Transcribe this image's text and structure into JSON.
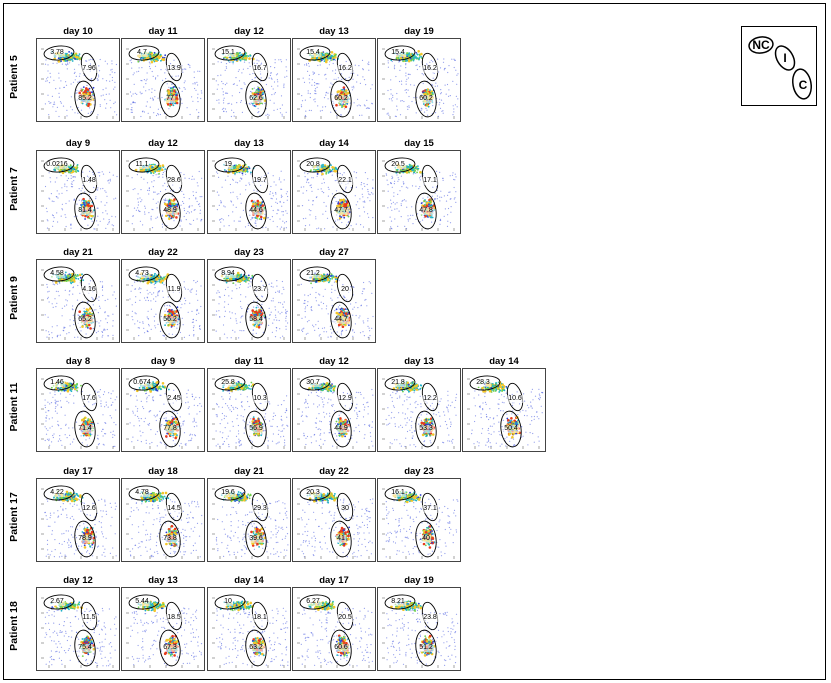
{
  "legend": {
    "labels": {
      "nc": "NC",
      "i": "I",
      "c": "C"
    }
  },
  "rows": [
    {
      "patient": "Patient 5",
      "panels": [
        {
          "day": "day 10",
          "nc": "3.78",
          "i": "7.96",
          "c": "85.2"
        },
        {
          "day": "day 11",
          "nc": "4.7",
          "i": "13.9",
          "c": "77"
        },
        {
          "day": "day 12",
          "nc": "15.1",
          "i": "16.7",
          "c": "62.6"
        },
        {
          "day": "day 13",
          "nc": "15.4",
          "i": "16.2",
          "c": "60.2"
        },
        {
          "day": "day 19",
          "nc": "15.4",
          "i": "16.2",
          "c": "60.2"
        }
      ]
    },
    {
      "patient": "Patient 7",
      "panels": [
        {
          "day": "day 9",
          "nc": "0.0216",
          "i": "1.48",
          "c": "81.4"
        },
        {
          "day": "day 12",
          "nc": "11.1",
          "i": "28.6",
          "c": "48.9"
        },
        {
          "day": "day 13",
          "nc": "19",
          "i": "19.7",
          "c": "44.6"
        },
        {
          "day": "day 14",
          "nc": "20.8",
          "i": "22.1",
          "c": "47.7"
        },
        {
          "day": "day 15",
          "nc": "20.5",
          "i": "17.1",
          "c": "47.8"
        }
      ]
    },
    {
      "patient": "Patient 9",
      "panels": [
        {
          "day": "day 21",
          "nc": "4.58",
          "i": "4.16",
          "c": "65.2"
        },
        {
          "day": "day 22",
          "nc": "4.73",
          "i": "11.9",
          "c": "56.2"
        },
        {
          "day": "day 23",
          "nc": "8.94",
          "i": "23.7",
          "c": "58.4"
        },
        {
          "day": "day 27",
          "nc": "21.2",
          "i": "20",
          "c": "44.7"
        }
      ]
    },
    {
      "patient": "Patient 11",
      "panels": [
        {
          "day": "day 8",
          "nc": "1.46",
          "i": "17.6",
          "c": "71.4"
        },
        {
          "day": "day 9",
          "nc": "0.674",
          "i": "2.45",
          "c": "77.8"
        },
        {
          "day": "day 11",
          "nc": "25.8",
          "i": "10.3",
          "c": "56.9"
        },
        {
          "day": "day 12",
          "nc": "30.7",
          "i": "12.9",
          "c": "44.9"
        },
        {
          "day": "day 13",
          "nc": "21.8",
          "i": "12.2",
          "c": "53.3"
        },
        {
          "day": "day 14",
          "nc": "28.3",
          "i": "10.6",
          "c": "50.4"
        }
      ]
    },
    {
      "patient": "Patient 17",
      "panels": [
        {
          "day": "day 17",
          "nc": "4.22",
          "i": "12.6",
          "c": "78.9"
        },
        {
          "day": "day 18",
          "nc": "4.78",
          "i": "14.5",
          "c": "73.8"
        },
        {
          "day": "day 21",
          "nc": "19.6",
          "i": "29.3",
          "c": "39.6"
        },
        {
          "day": "day 22",
          "nc": "20.3",
          "i": "30",
          "c": "41"
        },
        {
          "day": "day 23",
          "nc": "16.1",
          "i": "37.1",
          "c": "40"
        }
      ]
    },
    {
      "patient": "Patient 18",
      "panels": [
        {
          "day": "day 12",
          "nc": "2.67",
          "i": "11.5",
          "c": "75.4"
        },
        {
          "day": "day 13",
          "nc": "5.44",
          "i": "18.5",
          "c": "67.3"
        },
        {
          "day": "day 14",
          "nc": "10",
          "i": "18.1",
          "c": "63.2"
        },
        {
          "day": "day 17",
          "nc": "6.27",
          "i": "20.5",
          "c": "60.6"
        },
        {
          "day": "day 19",
          "nc": "8.21",
          "i": "23.8",
          "c": "51.2"
        }
      ]
    }
  ]
}
